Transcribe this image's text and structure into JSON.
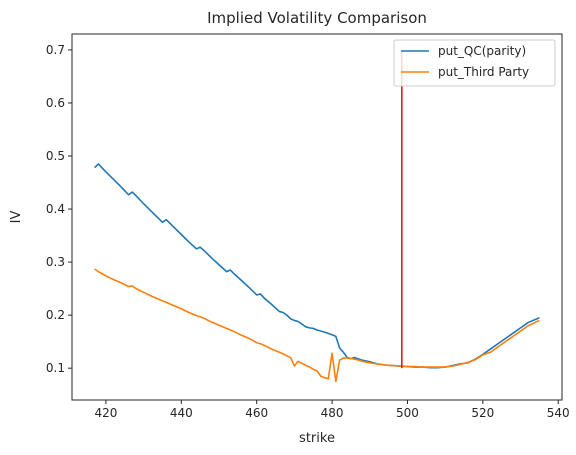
{
  "chart_data": {
    "type": "line",
    "title": "Implied Volatility Comparison",
    "xlabel": "strike",
    "ylabel": "IV",
    "xlim": [
      411,
      541
    ],
    "ylim": [
      0.04,
      0.73
    ],
    "xticks": [
      420,
      440,
      460,
      480,
      500,
      520,
      540
    ],
    "yticks": [
      0.1,
      0.2,
      0.3,
      0.4,
      0.5,
      0.6,
      0.7
    ],
    "grid": false,
    "legend_position": "upper-right",
    "series": [
      {
        "name": "put_QC(parity)",
        "color": "#1f77b4",
        "x": [
          417,
          418,
          420,
          422,
          424,
          426,
          427,
          428,
          430,
          432,
          434,
          435,
          436,
          438,
          440,
          442,
          444,
          445,
          446,
          448,
          450,
          452,
          453,
          454,
          456,
          458,
          460,
          461,
          462,
          464,
          466,
          467,
          468,
          469,
          470,
          471,
          472,
          473,
          474,
          475,
          476,
          478,
          480,
          481,
          482,
          483,
          484,
          485,
          486,
          488,
          490,
          492,
          494,
          496,
          498,
          500,
          502,
          504,
          506,
          508,
          510,
          512,
          514,
          516,
          518,
          520,
          522,
          524,
          526,
          528,
          530,
          532,
          535
        ],
        "y": [
          0.478,
          0.485,
          0.47,
          0.456,
          0.442,
          0.427,
          0.432,
          0.425,
          0.41,
          0.396,
          0.382,
          0.375,
          0.38,
          0.366,
          0.352,
          0.338,
          0.325,
          0.328,
          0.322,
          0.308,
          0.295,
          0.282,
          0.285,
          0.278,
          0.265,
          0.252,
          0.238,
          0.24,
          0.232,
          0.22,
          0.207,
          0.205,
          0.2,
          0.193,
          0.19,
          0.188,
          0.183,
          0.178,
          0.176,
          0.175,
          0.172,
          0.168,
          0.163,
          0.16,
          0.138,
          0.13,
          0.12,
          0.118,
          0.12,
          0.115,
          0.112,
          0.108,
          0.106,
          0.105,
          0.104,
          0.103,
          0.102,
          0.102,
          0.101,
          0.101,
          0.102,
          0.105,
          0.108,
          0.11,
          0.117,
          0.126,
          0.136,
          0.146,
          0.156,
          0.166,
          0.176,
          0.186,
          0.195
        ]
      },
      {
        "name": "put_Third Party",
        "color": "#ff7f0e",
        "x": [
          417,
          418,
          420,
          422,
          424,
          426,
          427,
          428,
          430,
          432,
          434,
          435,
          436,
          438,
          440,
          442,
          444,
          445,
          446,
          448,
          450,
          452,
          453,
          454,
          456,
          458,
          460,
          461,
          462,
          464,
          466,
          467,
          468,
          469,
          470,
          471,
          472,
          474,
          475,
          476,
          477,
          478,
          479,
          480,
          481,
          482,
          483,
          484,
          485,
          486,
          488,
          490,
          492,
          494,
          496,
          498,
          500,
          502,
          504,
          506,
          508,
          510,
          512,
          514,
          516,
          518,
          520,
          522,
          524,
          526,
          528,
          530,
          532,
          535
        ],
        "y": [
          0.287,
          0.282,
          0.274,
          0.267,
          0.261,
          0.254,
          0.255,
          0.25,
          0.243,
          0.236,
          0.23,
          0.227,
          0.224,
          0.218,
          0.212,
          0.205,
          0.199,
          0.197,
          0.194,
          0.187,
          0.181,
          0.175,
          0.172,
          0.169,
          0.162,
          0.156,
          0.148,
          0.146,
          0.143,
          0.136,
          0.13,
          0.127,
          0.123,
          0.12,
          0.104,
          0.113,
          0.109,
          0.102,
          0.098,
          0.095,
          0.085,
          0.082,
          0.08,
          0.128,
          0.075,
          0.115,
          0.119,
          0.119,
          0.118,
          0.117,
          0.113,
          0.11,
          0.108,
          0.106,
          0.105,
          0.104,
          0.103,
          0.103,
          0.102,
          0.102,
          0.102,
          0.102,
          0.104,
          0.107,
          0.111,
          0.116,
          0.125,
          0.13,
          0.14,
          0.15,
          0.16,
          0.17,
          0.18,
          0.19
        ]
      }
    ],
    "annotations": [
      {
        "type": "vertical-line",
        "x": 498.5,
        "y_from": 0.1,
        "y_to": 0.7,
        "color": "#e41a1c"
      }
    ]
  }
}
